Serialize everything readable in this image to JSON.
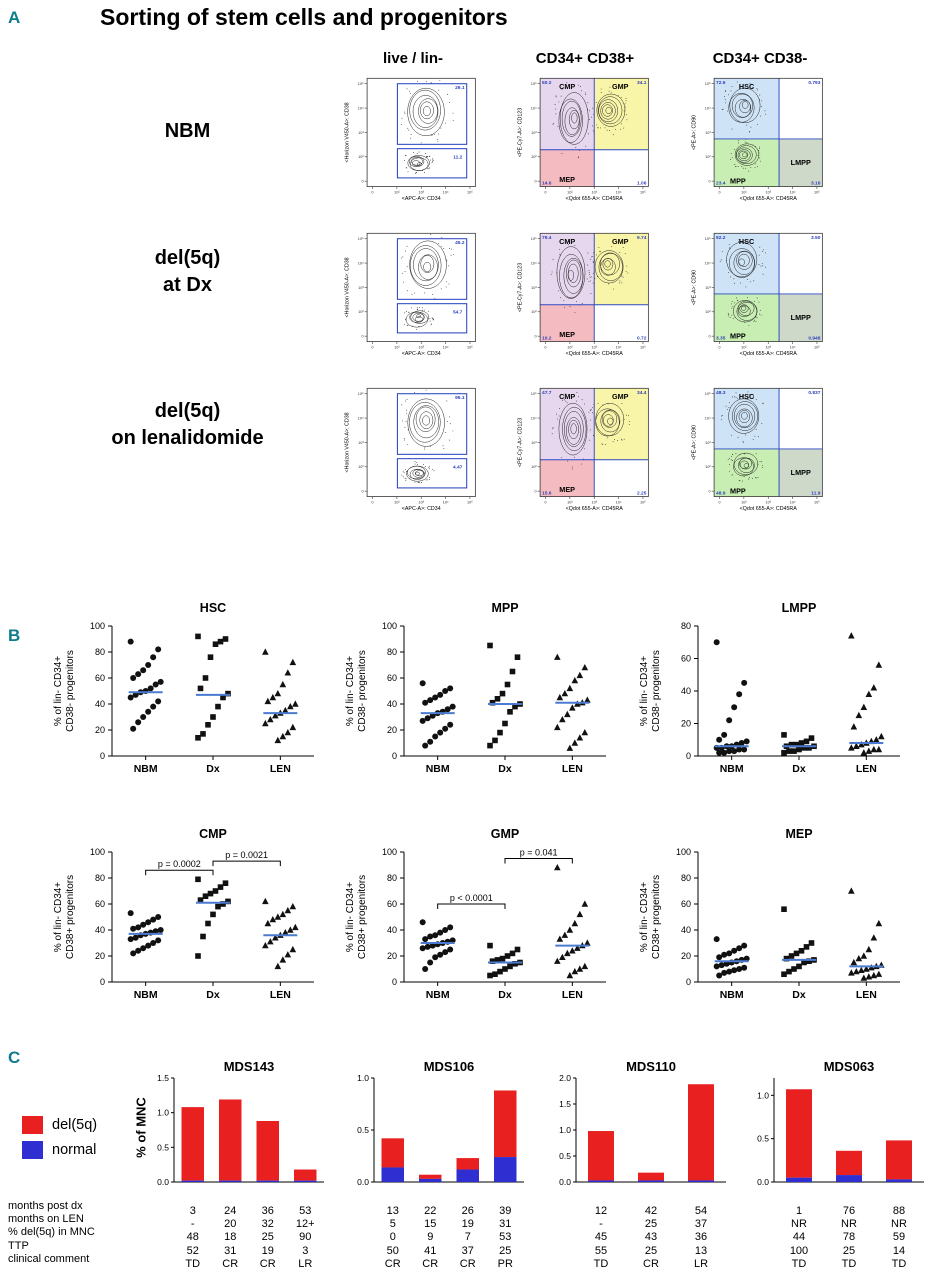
{
  "panel_a": {
    "label": "A",
    "title": "Sorting of stem cells and progenitors",
    "col_headers": [
      "live / lin-",
      "CD34+ CD38+",
      "CD34+ CD38-"
    ],
    "log_ticks": [
      "0",
      "10²",
      "10³",
      "10⁴",
      "10⁵"
    ],
    "axis": {
      "live": {
        "x": "<APC-A>: CD34",
        "y": "<Horizon V450-A>: CD38"
      },
      "cd38pos": {
        "x": "<Qdot 655-A>: CD45RA",
        "y": "<PE-Cy7-A>: CD123"
      },
      "cd38neg": {
        "x": "<Qdot 655-A>: CD45RA",
        "y": "<PE-A>: CD90"
      }
    },
    "quad_labels": {
      "cd38pos": {
        "tl": "CMP",
        "tr": "GMP",
        "bl": "MEP"
      },
      "cd38neg": {
        "tl": "HSC",
        "bl": "MPP",
        "br": "LMPP"
      }
    },
    "colors": {
      "cmp": "#e7d7ee",
      "gmp": "#f9f5a8",
      "mep": "#f4bcc0",
      "hsc": "#cfe3f6",
      "mpp": "#c9eeb4",
      "lmpp": "#cfd9ca",
      "gate": "#2d49c3",
      "number": "#2b3fbf"
    },
    "rows": [
      {
        "label_lines": [
          "NBM",
          ""
        ],
        "live": {
          "top": "29.1",
          "bottom": "11.2"
        },
        "cd38pos": {
          "tl": "50.2",
          "tr": "34.1",
          "bl": "14.6",
          "br": "1.06"
        },
        "cd38neg": {
          "tl": "72.6",
          "tr": "0.793",
          "bl": "23.4",
          "br": "3.16"
        }
      },
      {
        "label_lines": [
          "del(5q)",
          "at Dx"
        ],
        "live": {
          "top": "45.2",
          "bottom": "54.7"
        },
        "cd38pos": {
          "tl": "79.4",
          "tr": "9.74",
          "bl": "10.2",
          "br": "0.72"
        },
        "cd38neg": {
          "tl": "92.2",
          "tr": "3.50",
          "bl": "3.35",
          "br": "0.948"
        }
      },
      {
        "label_lines": [
          "del(5q)",
          "on lenalidomide"
        ],
        "live": {
          "top": "95.1",
          "bottom": "4.47"
        },
        "cd38pos": {
          "tl": "47.7",
          "tr": "34.4",
          "bl": "15.6",
          "br": "2.25"
        },
        "cd38neg": {
          "tl": "48.3",
          "tr": "0.837",
          "bl": "48.9",
          "br": "11.9"
        }
      }
    ]
  },
  "panel_b": {
    "label": "B"
  },
  "panel_c": {
    "label": "C",
    "legend": [
      {
        "label": "del(5q)",
        "color": "#e8201f"
      },
      {
        "label": "normal",
        "color": "#2f2fd1"
      }
    ],
    "ylabel": "% of MNC",
    "table_row_labels": [
      "months post dx",
      "months on LEN",
      "% del(5q) in MNC",
      "TTP",
      "clinical comment"
    ]
  },
  "chart_data": [
    {
      "type": "scatter",
      "title": "HSC",
      "ylabel_lines": [
        "% of lin- CD34+",
        "CD38- progenitors"
      ],
      "ylim": [
        0,
        100
      ],
      "yticks": [
        0,
        20,
        40,
        60,
        80,
        100
      ],
      "categories": [
        "NBM",
        "Dx",
        "LEN"
      ],
      "series": [
        {
          "name": "NBM",
          "marker": "circle",
          "values": [
            88,
            82,
            76,
            70,
            66,
            63,
            60,
            57,
            55,
            52,
            50,
            49,
            47,
            45,
            42,
            38,
            34,
            30,
            26,
            21
          ]
        },
        {
          "name": "Dx",
          "marker": "square",
          "values": [
            92,
            90,
            88,
            86,
            76,
            60,
            52,
            48,
            45,
            38,
            30,
            24,
            17,
            14
          ]
        },
        {
          "name": "LEN",
          "marker": "triangle",
          "values": [
            80,
            72,
            64,
            55,
            48,
            45,
            42,
            40,
            38,
            35,
            33,
            31,
            28,
            25,
            22,
            18,
            15,
            12
          ]
        }
      ],
      "medians": [
        49,
        47,
        33
      ],
      "comparisons": []
    },
    {
      "type": "scatter",
      "title": "MPP",
      "ylabel_lines": [
        "% of lin- CD34+",
        "CD38- progenitors"
      ],
      "ylim": [
        0,
        100
      ],
      "yticks": [
        0,
        20,
        40,
        60,
        80,
        100
      ],
      "categories": [
        "NBM",
        "Dx",
        "LEN"
      ],
      "series": [
        {
          "name": "NBM",
          "marker": "circle",
          "values": [
            56,
            52,
            50,
            47,
            45,
            43,
            41,
            38,
            36,
            34,
            33,
            31,
            29,
            27,
            24,
            21,
            18,
            15,
            11,
            8
          ]
        },
        {
          "name": "Dx",
          "marker": "square",
          "values": [
            85,
            76,
            65,
            55,
            48,
            44,
            41,
            40,
            38,
            34,
            25,
            18,
            12,
            8
          ]
        },
        {
          "name": "LEN",
          "marker": "triangle",
          "values": [
            76,
            68,
            62,
            58,
            52,
            48,
            45,
            43,
            41,
            40,
            37,
            32,
            28,
            22,
            18,
            14,
            10,
            6
          ]
        }
      ],
      "medians": [
        33,
        40,
        41
      ],
      "comparisons": []
    },
    {
      "type": "scatter",
      "title": "LMPP",
      "ylabel_lines": [
        "% of lin- CD34+",
        "CD38- progenitors"
      ],
      "ylim": [
        0,
        80
      ],
      "yticks": [
        0,
        20,
        40,
        60,
        80
      ],
      "categories": [
        "NBM",
        "Dx",
        "LEN"
      ],
      "series": [
        {
          "name": "NBM",
          "marker": "circle",
          "values": [
            70,
            45,
            38,
            30,
            22,
            13,
            10,
            9,
            8,
            7,
            6,
            6,
            5,
            5,
            4,
            4,
            3,
            3,
            2,
            2
          ]
        },
        {
          "name": "Dx",
          "marker": "square",
          "values": [
            13,
            11,
            9,
            8,
            7,
            7,
            6,
            6,
            5,
            5,
            4,
            3,
            3,
            2
          ]
        },
        {
          "name": "LEN",
          "marker": "triangle",
          "values": [
            74,
            56,
            42,
            38,
            30,
            25,
            18,
            12,
            10,
            9,
            8,
            7,
            6,
            5,
            4,
            4,
            3,
            2
          ]
        }
      ],
      "medians": [
        6,
        6,
        8
      ],
      "comparisons": []
    },
    {
      "type": "scatter",
      "title": "CMP",
      "ylabel_lines": [
        "% of lin- CD34+",
        "CD38+ progenitors"
      ],
      "ylim": [
        0,
        100
      ],
      "yticks": [
        0,
        20,
        40,
        60,
        80,
        100
      ],
      "categories": [
        "NBM",
        "Dx",
        "LEN"
      ],
      "series": [
        {
          "name": "NBM",
          "marker": "circle",
          "values": [
            53,
            50,
            48,
            46,
            44,
            42,
            41,
            40,
            39,
            38,
            37,
            36,
            34,
            33,
            32,
            30,
            28,
            26,
            24,
            22
          ]
        },
        {
          "name": "Dx",
          "marker": "square",
          "values": [
            79,
            76,
            73,
            70,
            68,
            66,
            63,
            62,
            60,
            58,
            52,
            45,
            35,
            20
          ]
        },
        {
          "name": "LEN",
          "marker": "triangle",
          "values": [
            62,
            58,
            55,
            52,
            50,
            48,
            45,
            42,
            40,
            38,
            36,
            34,
            31,
            28,
            25,
            21,
            17,
            12
          ]
        }
      ],
      "medians": [
        37,
        61,
        36
      ],
      "comparisons": [
        {
          "a": 0,
          "b": 1,
          "label": "p = 0.0002",
          "y": 86
        },
        {
          "a": 1,
          "b": 2,
          "label": "p = 0.0021",
          "y": 93
        }
      ]
    },
    {
      "type": "scatter",
      "title": "GMP",
      "ylabel_lines": [
        "% of lin- CD34+",
        "CD38+ progenitors"
      ],
      "ylim": [
        0,
        100
      ],
      "yticks": [
        0,
        20,
        40,
        60,
        80,
        100
      ],
      "categories": [
        "NBM",
        "Dx",
        "LEN"
      ],
      "series": [
        {
          "name": "NBM",
          "marker": "circle",
          "values": [
            46,
            42,
            40,
            38,
            36,
            35,
            33,
            32,
            31,
            30,
            29,
            28,
            27,
            26,
            25,
            23,
            21,
            19,
            15,
            10
          ]
        },
        {
          "name": "Dx",
          "marker": "square",
          "values": [
            28,
            25,
            22,
            20,
            18,
            17,
            16,
            15,
            14,
            12,
            10,
            8,
            6,
            5
          ]
        },
        {
          "name": "LEN",
          "marker": "triangle",
          "values": [
            88,
            60,
            52,
            45,
            40,
            36,
            33,
            30,
            28,
            26,
            24,
            22,
            19,
            16,
            12,
            10,
            8,
            5
          ]
        }
      ],
      "medians": [
        30,
        15,
        28
      ],
      "comparisons": [
        {
          "a": 0,
          "b": 1,
          "label": "p < 0.0001",
          "y": 60
        },
        {
          "a": 1,
          "b": 2,
          "label": "p = 0.041",
          "y": 95
        }
      ]
    },
    {
      "type": "scatter",
      "title": "MEP",
      "ylabel_lines": [
        "% of lin- CD34+",
        "CD38+ progenitors"
      ],
      "ylim": [
        0,
        100
      ],
      "yticks": [
        0,
        20,
        40,
        60,
        80,
        100
      ],
      "categories": [
        "NBM",
        "Dx",
        "LEN"
      ],
      "series": [
        {
          "name": "NBM",
          "marker": "circle",
          "values": [
            33,
            28,
            26,
            24,
            22,
            21,
            19,
            18,
            17,
            16,
            15,
            14,
            13,
            12,
            11,
            10,
            9,
            8,
            7,
            5
          ]
        },
        {
          "name": "Dx",
          "marker": "square",
          "values": [
            56,
            30,
            27,
            24,
            22,
            20,
            18,
            17,
            16,
            15,
            12,
            10,
            8,
            6
          ]
        },
        {
          "name": "LEN",
          "marker": "triangle",
          "values": [
            70,
            45,
            34,
            25,
            20,
            18,
            15,
            13,
            12,
            11,
            10,
            9,
            8,
            7,
            6,
            5,
            4,
            3
          ]
        }
      ],
      "medians": [
        16,
        17,
        12
      ],
      "comparisons": []
    },
    {
      "type": "bar",
      "title": "MDS143",
      "ylabel": "% of MNC",
      "ylim": [
        0,
        1.5
      ],
      "yticks": [
        0,
        0.5,
        1.0,
        1.5
      ],
      "series": [
        {
          "name": "del(5q)",
          "values": [
            1.06,
            1.17,
            0.86,
            0.16
          ]
        },
        {
          "name": "normal",
          "values": [
            0.02,
            0.02,
            0.02,
            0.02
          ]
        }
      ],
      "table_rows": [
        [
          "3",
          "24",
          "36",
          "53"
        ],
        [
          "-",
          "20",
          "32",
          "12+"
        ],
        [
          "48",
          "18",
          "25",
          "90"
        ],
        [
          "52",
          "31",
          "19",
          "3"
        ],
        [
          "TD",
          "CR",
          "CR",
          "LR"
        ]
      ]
    },
    {
      "type": "bar",
      "title": "MDS106",
      "ylabel": "% of MNC",
      "ylim": [
        0,
        1.0
      ],
      "yticks": [
        0,
        0.5,
        1.0
      ],
      "series": [
        {
          "name": "del(5q)",
          "values": [
            0.28,
            0.04,
            0.11,
            0.64
          ]
        },
        {
          "name": "normal",
          "values": [
            0.14,
            0.03,
            0.12,
            0.24
          ]
        }
      ],
      "table_rows": [
        [
          "13",
          "22",
          "26",
          "39"
        ],
        [
          "5",
          "15",
          "19",
          "31"
        ],
        [
          "0",
          "9",
          "7",
          "53"
        ],
        [
          "50",
          "41",
          "37",
          "25"
        ],
        [
          "CR",
          "CR",
          "CR",
          "PR"
        ]
      ]
    },
    {
      "type": "bar",
      "title": "MDS110",
      "ylabel": "% of MNC",
      "ylim": [
        0,
        2.0
      ],
      "yticks": [
        0,
        0.5,
        1.0,
        1.5,
        2.0
      ],
      "series": [
        {
          "name": "del(5q)",
          "values": [
            0.95,
            0.15,
            1.85
          ]
        },
        {
          "name": "normal",
          "values": [
            0.03,
            0.03,
            0.03
          ]
        }
      ],
      "table_rows": [
        [
          "12",
          "42",
          "54"
        ],
        [
          "-",
          "25",
          "37"
        ],
        [
          "45",
          "43",
          "36"
        ],
        [
          "55",
          "25",
          "13"
        ],
        [
          "TD",
          "CR",
          "LR"
        ]
      ]
    },
    {
      "type": "bar",
      "title": "MDS063",
      "ylabel": "% of MNC",
      "ylim": [
        0,
        1.2
      ],
      "yticks": [
        0,
        0.5,
        1.0
      ],
      "series": [
        {
          "name": "del(5q)",
          "values": [
            1.02,
            0.28,
            0.45
          ]
        },
        {
          "name": "normal",
          "values": [
            0.05,
            0.08,
            0.03
          ]
        }
      ],
      "table_rows": [
        [
          "1",
          "76",
          "88"
        ],
        [
          "NR",
          "NR",
          "NR"
        ],
        [
          "44",
          "78",
          "59"
        ],
        [
          "100",
          "25",
          "14"
        ],
        [
          "TD",
          "TD",
          "TD"
        ]
      ]
    }
  ]
}
